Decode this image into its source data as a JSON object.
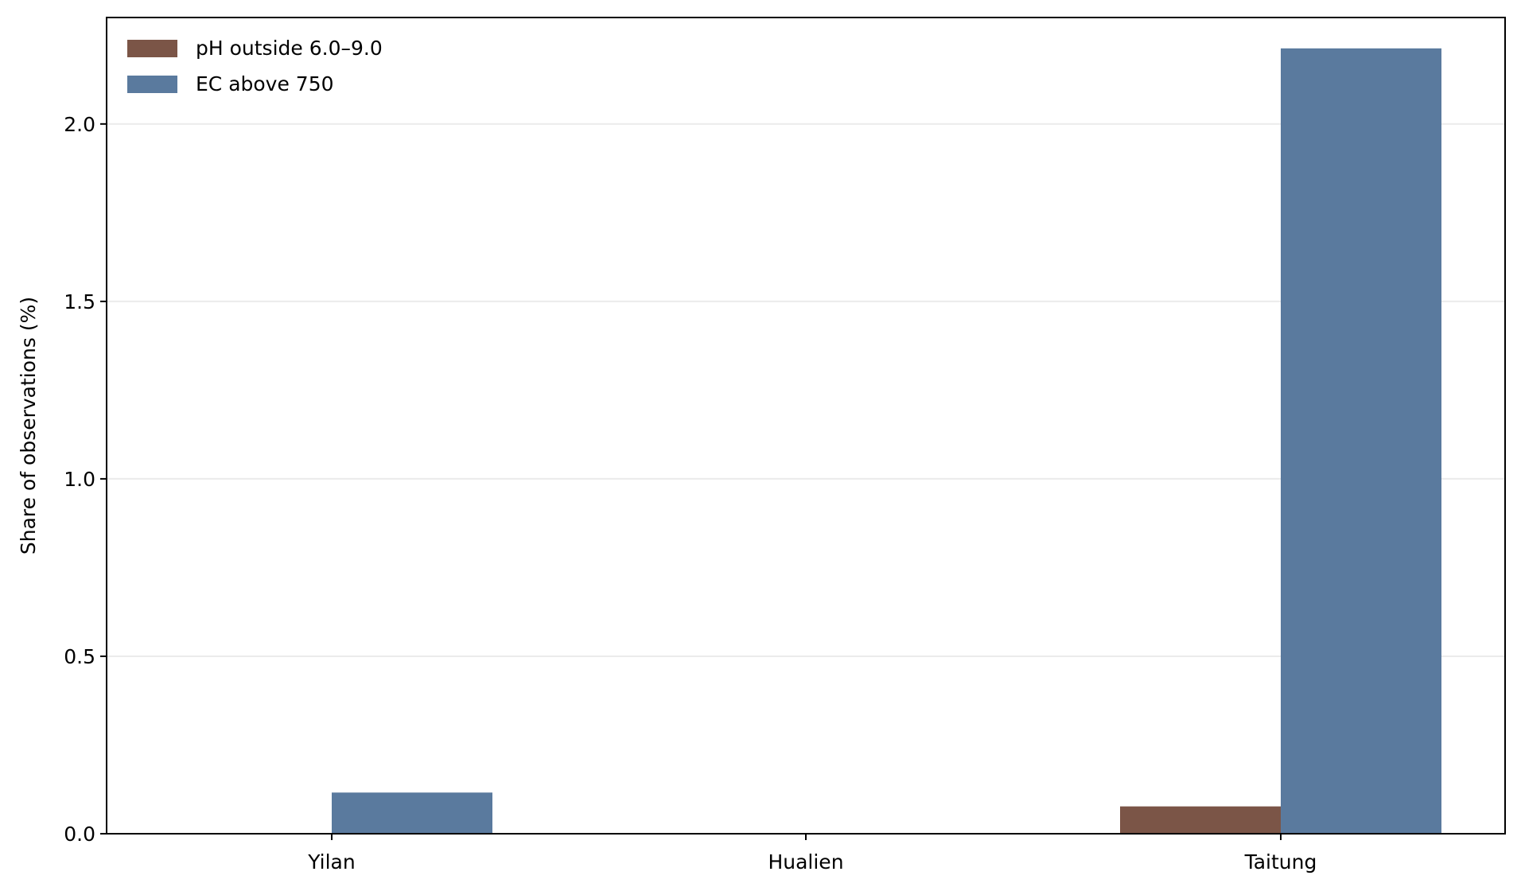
{
  "chart_data": {
    "type": "bar",
    "title": "",
    "xlabel": "",
    "ylabel": "Share of observations (%)",
    "categories": [
      "Yilan",
      "Hualien",
      "Taitung"
    ],
    "series": [
      {
        "name": "pH outside 6.0–9.0",
        "color": "#7b5547",
        "values": [
          0.0,
          0.0,
          0.077
        ]
      },
      {
        "name": "EC above 750",
        "color": "#5a7a9e",
        "values": [
          0.116,
          0.0,
          2.213
        ]
      }
    ],
    "ylim": [
      0,
      2.3
    ],
    "yticks": [
      "0.0",
      "0.5",
      "1.0",
      "1.5",
      "2.0"
    ],
    "grid": "horizontal",
    "legend_position": "top-left"
  }
}
